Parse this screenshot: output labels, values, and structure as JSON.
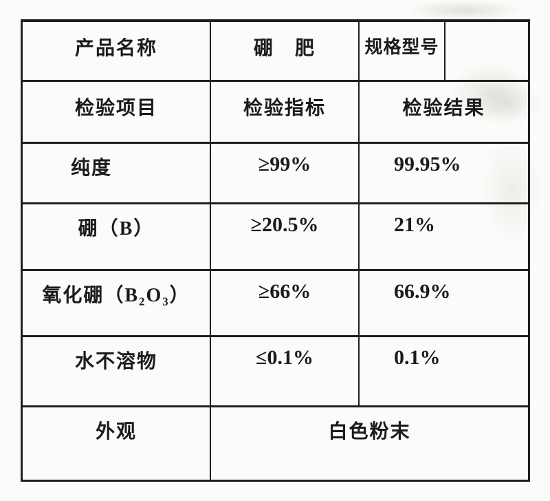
{
  "document": {
    "type": "product-inspection-report",
    "paper_color": "#fbfbf9",
    "ink_color": "#1e1e1e"
  },
  "table": {
    "header_row": {
      "product_name_label": "产品名称",
      "product_name_value": "硼　肥",
      "spec_model_label": "规格型号",
      "spec_model_value": ""
    },
    "columns_header": {
      "item": "检验项目",
      "standard": "检验指标",
      "result": "检验结果"
    },
    "rows": [
      {
        "item": "纯度",
        "standard": "≥99%",
        "result": "99.95%"
      },
      {
        "item": "硼（B）",
        "standard": "≥20.5%",
        "result": "21%"
      },
      {
        "item": "氧化硼（B₂O₃）",
        "standard": "≥66%",
        "result": "66.9%"
      },
      {
        "item": "水不溶物",
        "standard": "≤0.1%",
        "result": "0.1%"
      }
    ],
    "footer_row": {
      "item": "外观",
      "value": "白色粉末"
    }
  }
}
